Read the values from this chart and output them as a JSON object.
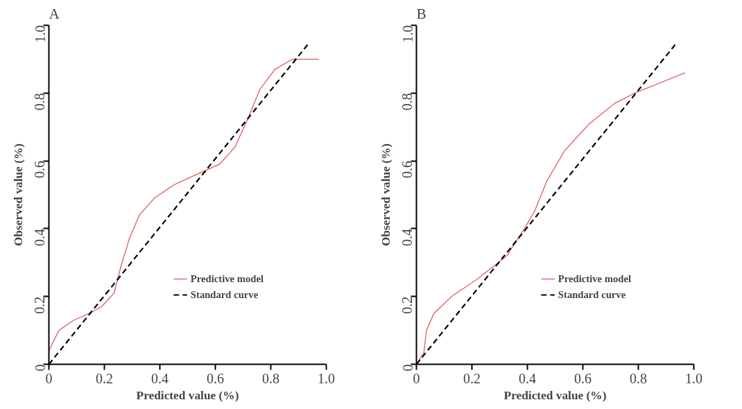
{
  "chart_data": [
    {
      "type": "line",
      "title": "A",
      "xlabel": "Predicted value (%)",
      "ylabel": "Observed value (%)",
      "xlim": [
        0,
        1
      ],
      "ylim": [
        0,
        1
      ],
      "xticks": [
        0,
        0.2,
        0.4,
        0.6,
        0.8,
        {
          "value": 1,
          "label": "1.0"
        }
      ],
      "yticks": [
        0,
        0.2,
        0.4,
        0.6,
        0.8,
        {
          "value": 1,
          "label": "1.0"
        }
      ],
      "grid": false,
      "legend": "bottom right",
      "marker": "none",
      "series": [
        {
          "name": "Predictive model",
          "color": "#e07070",
          "line_style": "solid",
          "x": [
            0,
            0.036,
            0.09,
            0.145,
            0.19,
            0.235,
            0.26,
            0.29,
            0.326,
            0.38,
            0.452,
            0.56,
            0.615,
            0.67,
            0.715,
            0.76,
            0.815,
            0.878,
            0.923,
            0.973
          ],
          "values": [
            0.04,
            0.1,
            0.13,
            0.15,
            0.17,
            0.21,
            0.29,
            0.37,
            0.44,
            0.49,
            0.53,
            0.57,
            0.59,
            0.64,
            0.72,
            0.81,
            0.87,
            0.9,
            0.9,
            0.9
          ]
        },
        {
          "name": "Standard curve",
          "color": "#000000",
          "line_style": "dashed",
          "x": [
            0,
            0.94
          ],
          "values": [
            0,
            0.95
          ]
        }
      ]
    },
    {
      "type": "line",
      "title": "B",
      "xlabel": "Predicted value (%)",
      "ylabel": "Observed value (%)",
      "xlim": [
        0,
        1
      ],
      "ylim": [
        0,
        1
      ],
      "xticks": [
        0,
        0.2,
        0.4,
        0.6,
        0.8,
        {
          "value": 1,
          "label": "1.0"
        }
      ],
      "yticks": [
        0,
        0.2,
        0.4,
        0.6,
        0.8,
        {
          "value": 1,
          "label": "1.0"
        }
      ],
      "grid": false,
      "legend": "bottom right",
      "marker": "none",
      "series": [
        {
          "name": "Predictive model",
          "color": "#e07070",
          "line_style": "solid",
          "x": [
            0,
            0.027,
            0.036,
            0.063,
            0.127,
            0.217,
            0.28,
            0.326,
            0.389,
            0.425,
            0.47,
            0.534,
            0.624,
            0.715,
            0.787,
            0.878,
            0.968
          ],
          "values": [
            0,
            0.035,
            0.1,
            0.15,
            0.2,
            0.25,
            0.29,
            0.32,
            0.4,
            0.45,
            0.54,
            0.63,
            0.71,
            0.77,
            0.8,
            0.83,
            0.86
          ]
        },
        {
          "name": "Standard curve",
          "color": "#000000",
          "line_style": "dashed",
          "x": [
            0,
            0.94
          ],
          "values": [
            0,
            0.95
          ]
        }
      ]
    }
  ]
}
